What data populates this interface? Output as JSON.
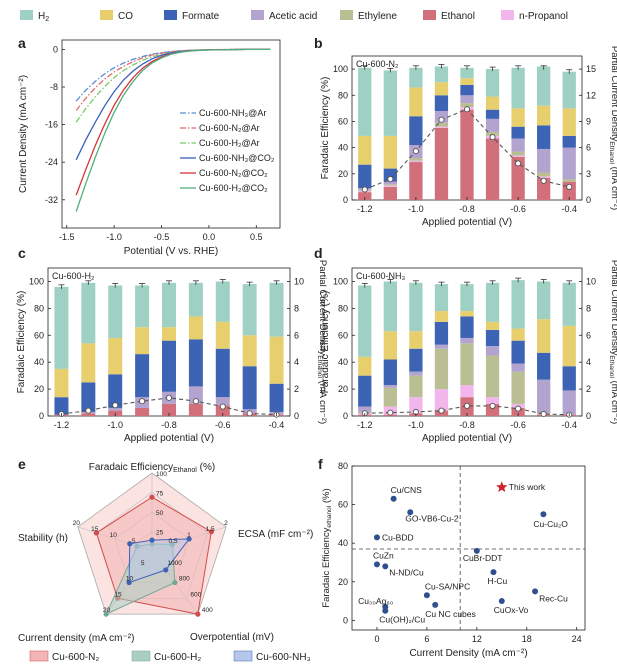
{
  "legend": [
    {
      "label": "H",
      "sub": "2",
      "color": "#9fd0c4"
    },
    {
      "label": "CO",
      "sub": "",
      "color": "#e8cf6d"
    },
    {
      "label": "Formate",
      "sub": "",
      "color": "#3d63b5"
    },
    {
      "label": "Acetic acid",
      "sub": "",
      "color": "#b3a4cf"
    },
    {
      "label": "Ethylene",
      "sub": "",
      "color": "#b9be93"
    },
    {
      "label": "Ethanol",
      "sub": "",
      "color": "#d1707a"
    },
    {
      "label": "n-Propanol",
      "sub": "",
      "color": "#f1b7ec"
    }
  ],
  "panel_letters": {
    "a": "a",
    "b": "b",
    "c": "c",
    "d": "d",
    "e": "e",
    "f": "f"
  },
  "chart_data": [
    {
      "panel": "a",
      "type": "line",
      "xlabel": "Potential (V vs. RHE)",
      "ylabel": "Current Density (mA cm⁻²)",
      "xlim": [
        -1.55,
        0.75
      ],
      "ylim": [
        -38,
        2
      ],
      "xticks": [
        -1.5,
        -1.0,
        -0.5,
        0.0,
        0.5
      ],
      "xtick_labels": [
        "-1.5",
        "-1.0",
        "-0.5",
        "0.0",
        "0.5"
      ],
      "yticks": [
        0,
        -8,
        -16,
        -24,
        -32
      ],
      "ytick_labels": [
        "0",
        "-8",
        "-16",
        "-24",
        "-32"
      ],
      "series": [
        {
          "name": "Cu-600-NH₃@Ar",
          "color": "#5b8bd6",
          "dash": "6 2 1.5 2",
          "x": [
            -1.4,
            -1.3,
            -1.2,
            -1.1,
            -1.0,
            -0.9,
            -0.8,
            -0.7,
            -0.6,
            -0.5,
            -0.4,
            -0.3,
            -0.2,
            -0.1,
            0,
            0.2,
            0.4,
            0.65
          ],
          "y": [
            -11,
            -8.7,
            -6.8,
            -5.2,
            -3.9,
            -2.9,
            -2.1,
            -1.5,
            -1.0,
            -0.7,
            -0.45,
            -0.3,
            -0.2,
            -0.12,
            -0.08,
            -0.03,
            -0.01,
            0
          ]
        },
        {
          "name": "Cu-600-N₂@Ar",
          "color": "#e06a6a",
          "dash": "6 2 1.5 2",
          "x": [
            -1.4,
            -1.3,
            -1.2,
            -1.1,
            -1.0,
            -0.9,
            -0.8,
            -0.7,
            -0.6,
            -0.5,
            -0.4,
            -0.3,
            -0.2,
            -0.1,
            0,
            0.2,
            0.4,
            0.65
          ],
          "y": [
            -13,
            -10.4,
            -8.2,
            -6.3,
            -4.8,
            -3.6,
            -2.6,
            -1.8,
            -1.2,
            -0.8,
            -0.5,
            -0.32,
            -0.2,
            -0.12,
            -0.08,
            -0.03,
            -0.01,
            0
          ]
        },
        {
          "name": "Cu-600-H₂@Ar",
          "color": "#7cc86a",
          "dash": "6 2 1.5 2",
          "x": [
            -1.4,
            -1.3,
            -1.2,
            -1.1,
            -1.0,
            -0.9,
            -0.8,
            -0.7,
            -0.6,
            -0.5,
            -0.4,
            -0.3,
            -0.2,
            -0.1,
            0,
            0.2,
            0.4,
            0.65
          ],
          "y": [
            -15.5,
            -12.6,
            -10.1,
            -7.9,
            -6.0,
            -4.5,
            -3.3,
            -2.3,
            -1.6,
            -1.05,
            -0.65,
            -0.4,
            -0.25,
            -0.15,
            -0.1,
            -0.04,
            -0.01,
            0
          ]
        },
        {
          "name": "Cu-600-NH₃@CO₂",
          "color": "#3a5fbf",
          "dash": "",
          "x": [
            -1.4,
            -1.3,
            -1.2,
            -1.1,
            -1.0,
            -0.9,
            -0.8,
            -0.7,
            -0.6,
            -0.5,
            -0.4,
            -0.3,
            -0.2,
            -0.1,
            0,
            0.2,
            0.4,
            0.65
          ],
          "y": [
            -23.5,
            -19.3,
            -15.5,
            -12.0,
            -9.0,
            -6.5,
            -4.6,
            -3.1,
            -2.0,
            -1.25,
            -0.75,
            -0.45,
            -0.28,
            -0.17,
            -0.1,
            -0.04,
            -0.01,
            0
          ]
        },
        {
          "name": "Cu-600-N₂@CO₂",
          "color": "#d8323a",
          "dash": "",
          "x": [
            -1.4,
            -1.3,
            -1.2,
            -1.1,
            -1.0,
            -0.9,
            -0.8,
            -0.7,
            -0.6,
            -0.5,
            -0.4,
            -0.3,
            -0.2,
            -0.1,
            0,
            0.2,
            0.4,
            0.65
          ],
          "y": [
            -31,
            -25.6,
            -20.5,
            -15.9,
            -11.9,
            -8.6,
            -6.0,
            -4.0,
            -2.6,
            -1.6,
            -0.95,
            -0.55,
            -0.32,
            -0.19,
            -0.11,
            -0.04,
            -0.01,
            0
          ]
        },
        {
          "name": "Cu-600-H₂@CO₂",
          "color": "#4fb07d",
          "dash": "",
          "x": [
            -1.4,
            -1.3,
            -1.2,
            -1.1,
            -1.0,
            -0.9,
            -0.8,
            -0.7,
            -0.6,
            -0.5,
            -0.4,
            -0.3,
            -0.2,
            -0.1,
            0,
            0.2,
            0.4,
            0.65
          ],
          "y": [
            -34.5,
            -28.6,
            -23.0,
            -17.9,
            -13.4,
            -9.7,
            -6.8,
            -4.5,
            -2.9,
            -1.8,
            -1.05,
            -0.6,
            -0.35,
            -0.2,
            -0.12,
            -0.05,
            -0.01,
            0
          ]
        }
      ]
    },
    {
      "panel": "b",
      "type": "bar",
      "title": "Cu-600-N₂",
      "xlabel": "Applied potential (V)",
      "ylabel": "Faradaic Efficiency (%)",
      "y2label": "Partial Current Density",
      "y2label_sub": "Ethanol",
      "y2label_unit": " (mA cm⁻²)",
      "categories": [
        -1.2,
        -1.1,
        -1.0,
        -0.9,
        -0.8,
        -0.7,
        -0.6,
        -0.5,
        -0.4
      ],
      "xtick_labels": [
        "-1.2",
        "-1.0",
        "-0.8",
        "-0.6",
        "-0.4"
      ],
      "ylim": [
        0,
        110
      ],
      "yticks": [
        0,
        20,
        40,
        60,
        80,
        100
      ],
      "y2lim": [
        0,
        16.5
      ],
      "y2ticks": [
        0,
        3,
        6,
        9,
        12,
        15
      ],
      "series": [
        {
          "name": "Ethanol",
          "values": [
            6,
            10,
            29,
            55,
            69,
            47,
            33,
            17,
            14
          ]
        },
        {
          "name": "n-Propanol",
          "values": [
            1,
            1,
            1,
            1,
            2,
            2,
            1,
            1,
            0
          ]
        },
        {
          "name": "Ethylene",
          "values": [
            1,
            1,
            2,
            3,
            3,
            3,
            3,
            3,
            2
          ]
        },
        {
          "name": "Acetic acid",
          "values": [
            1,
            2,
            10,
            9,
            6,
            10,
            10,
            18,
            24
          ]
        },
        {
          "name": "Formate",
          "values": [
            18,
            10,
            22,
            12,
            8,
            7,
            9,
            18,
            9
          ]
        },
        {
          "name": "CO",
          "values": [
            22,
            25,
            22,
            10,
            5,
            10,
            14,
            15,
            21
          ]
        },
        {
          "name": "H₂",
          "values": [
            52,
            50,
            15,
            12,
            8,
            21,
            31,
            30,
            28
          ]
        }
      ],
      "totals": [
        101,
        99,
        101,
        102,
        101,
        100,
        101,
        101,
        98
      ],
      "partial_current": [
        1.2,
        2.4,
        5.6,
        9.2,
        10.4,
        7.2,
        4.2,
        2.2,
        1.5
      ]
    },
    {
      "panel": "c",
      "type": "bar",
      "title": "Cu-600-H₂",
      "xlabel": "Applied potential (V)",
      "ylabel": "Faradaic Efficiency (%)",
      "y2label": "Partial Current Density",
      "y2label_sub": "Ethanol",
      "y2label_unit": " (mA cm⁻²)",
      "categories": [
        -1.2,
        -1.1,
        -1.0,
        -0.9,
        -0.8,
        -0.7,
        -0.6,
        -0.5,
        -0.4
      ],
      "xtick_labels": [
        "-1.2",
        "-1.0",
        "-0.8",
        "-0.6",
        "-0.4"
      ],
      "ylim": [
        0,
        110
      ],
      "yticks": [
        0,
        20,
        40,
        60,
        80,
        100
      ],
      "y2lim": [
        0,
        11
      ],
      "y2ticks": [
        0,
        2,
        4,
        6,
        8,
        10
      ],
      "series": [
        {
          "name": "Ethanol",
          "values": [
            1,
            2,
            4,
            6,
            9,
            9,
            8,
            2,
            1
          ]
        },
        {
          "name": "n-Propanol",
          "values": [
            0,
            0,
            0,
            0,
            0,
            0,
            0,
            0,
            0
          ]
        },
        {
          "name": "Ethylene",
          "values": [
            0,
            0,
            0,
            0,
            0,
            0,
            0,
            0,
            0
          ]
        },
        {
          "name": "Acetic acid",
          "values": [
            0,
            1,
            2,
            8,
            9,
            13,
            6,
            3,
            2
          ]
        },
        {
          "name": "Formate",
          "values": [
            13,
            22,
            25,
            32,
            38,
            35,
            36,
            32,
            21
          ]
        },
        {
          "name": "CO",
          "values": [
            21,
            29,
            27,
            20,
            10,
            17,
            20,
            23,
            35
          ]
        },
        {
          "name": "H₂",
          "values": [
            61,
            45,
            39,
            31,
            33,
            25,
            30,
            38,
            40
          ]
        }
      ],
      "totals": [
        96,
        99,
        97,
        97,
        99,
        99,
        100,
        98,
        99
      ],
      "partial_current": [
        0.15,
        0.4,
        0.8,
        1.1,
        1.35,
        1.1,
        0.7,
        0.2,
        0.1
      ]
    },
    {
      "panel": "d",
      "type": "bar",
      "title": "Cu-600-NH₃",
      "xlabel": "Applied potential (V)",
      "ylabel": "Faradaic Efficiency (%)",
      "y2label": "Partial Current Density",
      "y2label_sub": "Ethanol",
      "y2label_unit": " (mA cm⁻²)",
      "categories": [
        -1.2,
        -1.1,
        -1.0,
        -0.9,
        -0.8,
        -0.7,
        -0.6,
        -0.5,
        -0.4
      ],
      "xtick_labels": [
        "-1.2",
        "-1.0",
        "-0.8",
        "-0.6",
        "-0.4"
      ],
      "ylim": [
        0,
        110
      ],
      "yticks": [
        0,
        20,
        40,
        60,
        80,
        100
      ],
      "y2lim": [
        0,
        11
      ],
      "y2ticks": [
        0,
        2,
        4,
        6,
        8,
        10
      ],
      "series": [
        {
          "name": "Ethanol",
          "values": [
            1,
            1,
            2,
            4,
            14,
            9,
            6,
            1,
            1
          ]
        },
        {
          "name": "n-Propanol",
          "values": [
            1,
            6,
            12,
            16,
            9,
            5,
            3,
            0,
            0
          ]
        },
        {
          "name": "Ethylene",
          "values": [
            1,
            14,
            16,
            30,
            31,
            31,
            24,
            1,
            0
          ]
        },
        {
          "name": "Acetic acid",
          "values": [
            4,
            2,
            3,
            3,
            4,
            7,
            6,
            25,
            18
          ]
        },
        {
          "name": "Formate",
          "values": [
            23,
            19,
            17,
            17,
            16,
            12,
            17,
            20,
            18
          ]
        },
        {
          "name": "CO",
          "values": [
            14,
            21,
            13,
            8,
            4,
            6,
            9,
            25,
            30
          ]
        },
        {
          "name": "H₂",
          "values": [
            53,
            37,
            36,
            20,
            20,
            29,
            36,
            28,
            32
          ]
        }
      ],
      "totals": [
        97,
        100,
        99,
        98,
        98,
        99,
        101,
        100,
        99
      ],
      "partial_current": [
        0.2,
        0.25,
        0.3,
        0.4,
        0.75,
        0.75,
        0.55,
        0.15,
        0.1
      ]
    },
    {
      "panel": "e",
      "type": "radar",
      "axes": [
        {
          "label": "Faradaic Efficiency",
          "sub": "Ethanol",
          "unit": " (%)",
          "max": 100,
          "ticks": [
            25,
            50,
            75,
            100
          ]
        },
        {
          "label": "ECSA (mF cm⁻²)",
          "sub": "",
          "unit": "",
          "max": 2.0,
          "ticks": [
            0.5,
            1.0,
            1.5,
            2.0
          ]
        },
        {
          "label": "Overpotential (mV)",
          "sub": "",
          "unit": "",
          "max": 400,
          "reversed": true,
          "ticks": [
            1000,
            800,
            600,
            400
          ]
        },
        {
          "label": "Current density (mA cm⁻²)",
          "sub": "",
          "unit": "",
          "max": 20,
          "ticks": [
            5,
            10,
            15,
            20
          ]
        },
        {
          "label": "Stability (h)",
          "sub": "",
          "unit": "",
          "max": 20,
          "ticks": [
            5,
            10,
            15,
            20
          ]
        }
      ],
      "series": [
        {
          "name": "Cu-600-N₂",
          "color": "#d14d4d",
          "fill": "#f2b4b4",
          "values": [
            69,
            1.6,
            400,
            15,
            15
          ]
        },
        {
          "name": "Cu-600-H₂",
          "color": "#6fa896",
          "fill": "#a9cfc4",
          "values": [
            9,
            0.55,
            700,
            20,
            4
          ]
        },
        {
          "name": "Cu-600-NH₃",
          "color": "#3d63b5",
          "fill": "#b6c8ea",
          "values": [
            14,
            1.0,
            820,
            10,
            6
          ]
        }
      ]
    },
    {
      "panel": "f",
      "type": "scatter",
      "xlabel": "Current Density (mA cm⁻²)",
      "ylabel": "Faradaic Efficiency",
      "ylabel_sub": "ethanol",
      "ylabel_unit": " (%)",
      "xlim": [
        -3,
        25
      ],
      "ylim": [
        -5,
        80
      ],
      "xticks": [
        0,
        6,
        12,
        18,
        24
      ],
      "yticks": [
        0,
        20,
        40,
        60,
        80
      ],
      "hline": 37,
      "vline": 10,
      "points": [
        {
          "label": "This work",
          "x": 15,
          "y": 69,
          "star": true
        },
        {
          "label": "Cu/CNS",
          "x": 2,
          "y": 63
        },
        {
          "label": "GO-VB6-Cu-2",
          "x": 4,
          "y": 56
        },
        {
          "label": "Cu-BDD",
          "x": 0,
          "y": 43
        },
        {
          "label": "Cu-Cu₂O",
          "x": 20,
          "y": 55
        },
        {
          "label": "CuBr-DDT",
          "x": 12,
          "y": 36
        },
        {
          "label": "CuZn",
          "x": 0,
          "y": 29
        },
        {
          "label": "N-ND/Cu",
          "x": 1,
          "y": 28
        },
        {
          "label": "H-Cu",
          "x": 14,
          "y": 25
        },
        {
          "label": "Cu-SA/NPC",
          "x": 6,
          "y": 13
        },
        {
          "label": "Rec-Cu",
          "x": 19,
          "y": 15
        },
        {
          "label": "Cu₃₀Ag₆₀",
          "x": 1,
          "y": 7
        },
        {
          "label": "Cu NC cubes",
          "x": 7,
          "y": 8
        },
        {
          "label": "CuOx-Vo",
          "x": 15,
          "y": 10
        },
        {
          "label": "Cu(OH)₂/Cu",
          "x": 1,
          "y": 5
        }
      ]
    }
  ]
}
